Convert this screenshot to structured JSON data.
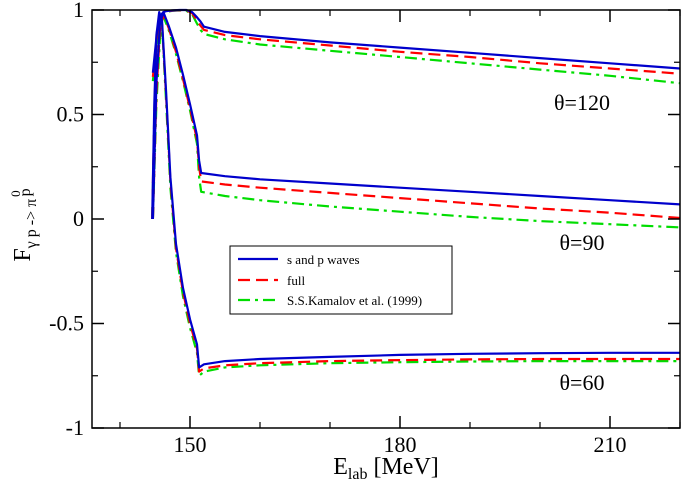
{
  "chart_data": {
    "type": "line",
    "xlabel_main": "E",
    "xlabel_sub": "lab",
    "xlabel_unit": " [MeV]",
    "ylabel_main": "F",
    "ylabel_sub": "γ p -> π",
    "ylabel_sup": "0",
    "ylabel_tail": "p",
    "xlim": [
      136,
      220
    ],
    "ylim": [
      -1,
      1
    ],
    "xticks": [
      150,
      180,
      210
    ],
    "xtick_labels": [
      "150",
      "180",
      "210"
    ],
    "yticks": [
      -1,
      -0.5,
      0,
      0.5,
      1
    ],
    "ytick_labels": [
      "-1",
      "-0.5",
      "0",
      "0.5",
      "1"
    ],
    "legend": [
      {
        "label": "s and p waves",
        "color": "#0000cc",
        "dash": "solid"
      },
      {
        "label": "full",
        "color": "#ff0000",
        "dash": "dashed"
      },
      {
        "label": "S.S.Kamalov et al. (1999)",
        "color": "#00dd00",
        "dash": "dashdot"
      }
    ],
    "annotations": [
      {
        "text": "θ=120",
        "x": 206,
        "y": 0.56
      },
      {
        "text": "θ=90",
        "x": 206,
        "y": -0.11
      },
      {
        "text": "θ=60",
        "x": 206,
        "y": -0.78
      }
    ],
    "series": [
      {
        "name": "s and p waves θ=120",
        "color": "#0000cc",
        "dash": "solid",
        "x": [
          144.7,
          145.3,
          145.8,
          146.2,
          146.7,
          147.5,
          148.5,
          149.5,
          150.3,
          151.0,
          151.5,
          152.0,
          155,
          160,
          170,
          180,
          190,
          200,
          210,
          220
        ],
        "y": [
          0.7,
          0.9,
          0.975,
          0.99,
          0.995,
          0.998,
          1.0,
          1.0,
          0.99,
          0.965,
          0.945,
          0.92,
          0.895,
          0.875,
          0.845,
          0.82,
          0.795,
          0.77,
          0.745,
          0.72
        ]
      },
      {
        "name": "full θ=120",
        "color": "#ff0000",
        "dash": "dashed",
        "x": [
          144.7,
          145.3,
          145.8,
          146.2,
          146.7,
          147.5,
          148.5,
          149.5,
          150.3,
          151.0,
          151.5,
          152.0,
          155,
          160,
          170,
          180,
          190,
          200,
          210,
          220
        ],
        "y": [
          0.68,
          0.89,
          0.97,
          0.988,
          0.994,
          0.997,
          0.999,
          0.998,
          0.985,
          0.95,
          0.925,
          0.905,
          0.88,
          0.86,
          0.83,
          0.8,
          0.775,
          0.745,
          0.72,
          0.695
        ]
      },
      {
        "name": "Kamalov θ=120",
        "color": "#00dd00",
        "dash": "dashdot",
        "x": [
          144.7,
          145.3,
          145.8,
          146.2,
          146.7,
          147.5,
          148.5,
          149.5,
          150.3,
          151.0,
          151.5,
          152.0,
          155,
          160,
          170,
          180,
          190,
          200,
          210,
          220
        ],
        "y": [
          0.66,
          0.87,
          0.96,
          0.985,
          0.992,
          0.996,
          0.998,
          0.996,
          0.98,
          0.935,
          0.905,
          0.885,
          0.86,
          0.835,
          0.805,
          0.775,
          0.745,
          0.715,
          0.685,
          0.65
        ]
      },
      {
        "name": "s and p waves θ=90",
        "color": "#0000cc",
        "dash": "solid",
        "x": [
          144.7,
          145.2,
          145.7,
          146.2,
          147.0,
          148.0,
          149.0,
          150.0,
          151.0,
          151.3,
          151.6,
          155,
          160,
          170,
          180,
          190,
          200,
          210,
          220
        ],
        "y": [
          0.0,
          0.65,
          0.93,
          0.99,
          0.92,
          0.82,
          0.69,
          0.55,
          0.4,
          0.28,
          0.22,
          0.205,
          0.19,
          0.17,
          0.15,
          0.13,
          0.11,
          0.09,
          0.07
        ]
      },
      {
        "name": "full θ=90",
        "color": "#ff0000",
        "dash": "dashed",
        "x": [
          144.7,
          145.2,
          145.7,
          146.2,
          147.0,
          148.0,
          149.0,
          150.0,
          151.0,
          151.3,
          151.6,
          155,
          160,
          170,
          180,
          190,
          200,
          210,
          220
        ],
        "y": [
          0.0,
          0.6,
          0.9,
          0.98,
          0.91,
          0.8,
          0.67,
          0.53,
          0.38,
          0.25,
          0.18,
          0.165,
          0.15,
          0.125,
          0.1,
          0.075,
          0.05,
          0.03,
          0.005
        ]
      },
      {
        "name": "Kamalov θ=90",
        "color": "#00dd00",
        "dash": "dashdot",
        "x": [
          144.7,
          145.2,
          145.7,
          146.2,
          147.0,
          148.0,
          149.0,
          150.0,
          151.0,
          151.3,
          151.6,
          155,
          160,
          170,
          180,
          190,
          200,
          210,
          220
        ],
        "y": [
          0.0,
          0.55,
          0.86,
          0.97,
          0.9,
          0.79,
          0.66,
          0.52,
          0.36,
          0.2,
          0.13,
          0.11,
          0.09,
          0.06,
          0.035,
          0.01,
          -0.01,
          -0.025,
          -0.04
        ]
      },
      {
        "name": "s and p waves θ=60",
        "color": "#0000cc",
        "dash": "solid",
        "x": [
          144.6,
          144.9,
          145.2,
          145.6,
          146.0,
          146.6,
          147.2,
          148.0,
          149.0,
          150.0,
          151.0,
          151.3,
          152,
          155,
          160,
          170,
          180,
          190,
          200,
          210,
          220
        ],
        "y": [
          0.0,
          0.55,
          0.88,
          0.99,
          0.95,
          0.6,
          0.2,
          -0.12,
          -0.33,
          -0.48,
          -0.6,
          -0.71,
          -0.695,
          -0.68,
          -0.67,
          -0.66,
          -0.65,
          -0.645,
          -0.642,
          -0.64,
          -0.64
        ]
      },
      {
        "name": "full θ=60",
        "color": "#ff0000",
        "dash": "dashed",
        "x": [
          144.6,
          144.9,
          145.2,
          145.6,
          146.0,
          146.6,
          147.2,
          148.0,
          149.0,
          150.0,
          151.0,
          151.3,
          152,
          155,
          160,
          170,
          180,
          190,
          200,
          210,
          220
        ],
        "y": [
          0.0,
          0.5,
          0.85,
          0.98,
          0.94,
          0.58,
          0.18,
          -0.14,
          -0.35,
          -0.5,
          -0.62,
          -0.73,
          -0.715,
          -0.7,
          -0.69,
          -0.68,
          -0.675,
          -0.672,
          -0.67,
          -0.67,
          -0.67
        ]
      },
      {
        "name": "Kamalov θ=60",
        "color": "#00dd00",
        "dash": "dashdot",
        "x": [
          144.6,
          144.9,
          145.2,
          145.6,
          146.0,
          146.6,
          147.2,
          148.0,
          149.0,
          150.0,
          151.0,
          151.3,
          152,
          155,
          160,
          170,
          180,
          190,
          200,
          210,
          220
        ],
        "y": [
          0.0,
          0.45,
          0.82,
          0.97,
          0.93,
          0.55,
          0.15,
          -0.16,
          -0.37,
          -0.52,
          -0.64,
          -0.75,
          -0.73,
          -0.71,
          -0.7,
          -0.69,
          -0.685,
          -0.682,
          -0.68,
          -0.68,
          -0.68
        ]
      }
    ]
  }
}
